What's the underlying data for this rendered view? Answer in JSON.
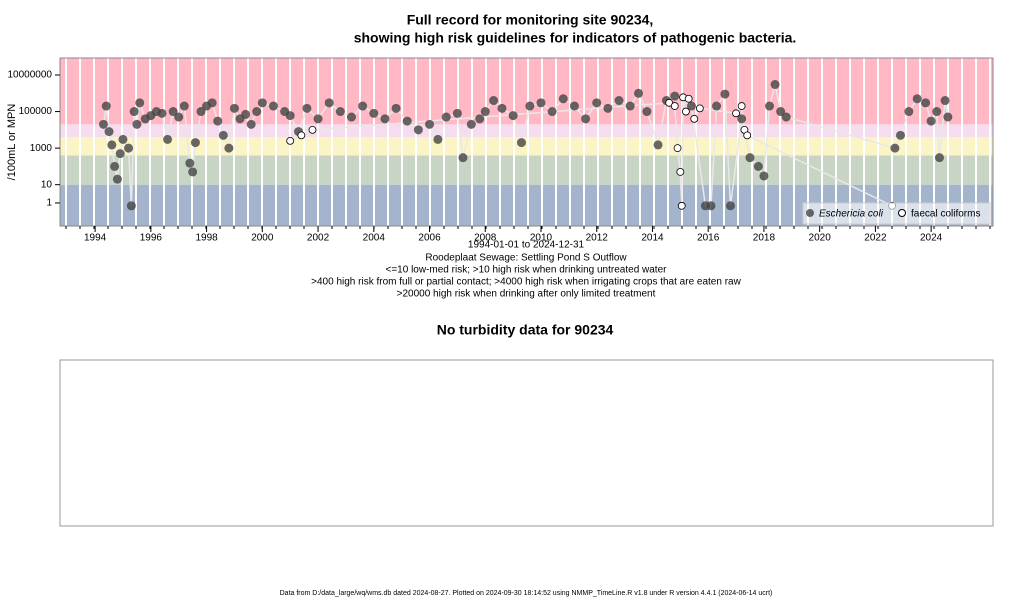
{
  "chart_data": {
    "type": "scatter",
    "title": "Full record for monitoring site 90234,",
    "subtitle": "showing high risk guidelines for indicators of pathogenic bacteria.",
    "y_label": "/100mL or MPN",
    "notes": [
      "1994-01-01 to 2024-12-31",
      "Roodeplaat Sewage: Settling Pond S Outflow",
      "<=10 low-med risk; >10 high risk when drinking untreated water",
      ">400 high risk from full or partial contact; >4000 high risk when irrigating crops that are eaten raw",
      ">20000 high risk when drinking after only limited treatment"
    ],
    "log_y": true,
    "xlim": [
      1992.74,
      2026.22
    ],
    "ylim": [
      0.055,
      85000000
    ],
    "xticks": [
      1994,
      1996,
      1998,
      2000,
      2002,
      2004,
      2006,
      2008,
      2010,
      2012,
      2014,
      2016,
      2018,
      2020,
      2022,
      2024
    ],
    "yticks": [
      1,
      10,
      1000,
      100000,
      10000000
    ],
    "band_thresholds": [
      10,
      400,
      4000,
      20000
    ],
    "band_colors": [
      "#a4b4cc",
      "#c9d5c4",
      "#fbf4c4",
      "#f5dcef",
      "#ffb8c4"
    ],
    "legend": "bottom-right",
    "series": [
      {
        "name": "Eschericia coli",
        "color": "#444444",
        "marker": "filled",
        "x": [
          1994.3,
          1994.4,
          1994.5,
          1994.6,
          1994.7,
          1994.8,
          1994.9,
          1995.0,
          1995.2,
          1995.3,
          1995.4,
          1995.5,
          1995.6,
          1995.8,
          1996.0,
          1996.2,
          1996.4,
          1996.6,
          1996.8,
          1997.0,
          1997.2,
          1997.4,
          1997.5,
          1997.6,
          1997.8,
          1998.0,
          1998.2,
          1998.4,
          1998.6,
          1998.8,
          1999.0,
          1999.2,
          1999.4,
          1999.6,
          1999.8,
          2000.0,
          2000.4,
          2000.8,
          2001.0,
          2001.3,
          2001.6,
          2002.0,
          2002.4,
          2002.8,
          2003.2,
          2003.6,
          2004.0,
          2004.4,
          2004.8,
          2005.2,
          2005.6,
          2006.0,
          2006.3,
          2006.6,
          2007.0,
          2007.2,
          2007.5,
          2007.8,
          2008.0,
          2008.3,
          2008.6,
          2009.0,
          2009.3,
          2009.6,
          2010.0,
          2010.4,
          2010.8,
          2011.2,
          2011.6,
          2012.0,
          2012.4,
          2012.8,
          2013.2,
          2013.5,
          2013.8,
          2014.2,
          2014.5,
          2014.8,
          2015.4,
          2015.9,
          2016.1,
          2016.3,
          2016.6,
          2016.8,
          2017.2,
          2017.5,
          2017.8,
          2018.0,
          2018.2,
          2018.4,
          2018.6,
          2018.8,
          2022.7,
          2022.9,
          2023.2,
          2023.5,
          2023.8,
          2024.0,
          2024.2,
          2024.3,
          2024.5,
          2024.6
        ],
        "values": [
          20000,
          200000,
          8000,
          1500,
          100,
          20,
          500,
          3000,
          1000,
          0.7,
          100000,
          20000,
          300000,
          40000,
          60000,
          100000,
          80000,
          3000,
          100000,
          50000,
          200000,
          150,
          50,
          2000,
          100000,
          200000,
          300000,
          30000,
          5000,
          1000,
          150000,
          40000,
          70000,
          20000,
          100000,
          300000,
          200000,
          100000,
          60000,
          8000,
          150000,
          40000,
          300000,
          100000,
          50000,
          200000,
          80000,
          40000,
          150000,
          30000,
          10000,
          20000,
          3000,
          50000,
          80000,
          300,
          20000,
          40000,
          100000,
          400000,
          150000,
          60000,
          2000,
          200000,
          300000,
          100000,
          500000,
          200000,
          40000,
          300000,
          150000,
          400000,
          200000,
          1000000,
          100000,
          1500,
          400000,
          700000,
          200000,
          0.7,
          0.7,
          200000,
          900000,
          0.7,
          40000,
          300,
          100,
          30,
          200000,
          3000000,
          100000,
          50000,
          1000,
          5000,
          100000,
          500000,
          300000,
          30000,
          100000,
          300,
          400000,
          50000
        ]
      },
      {
        "name": "faecal coliforms",
        "color": "#000000",
        "marker": "open",
        "x": [
          2001.0,
          2001.4,
          2001.8,
          2014.6,
          2014.8,
          2014.9,
          2015.0,
          2015.05,
          2015.1,
          2015.2,
          2015.3,
          2015.5,
          2015.7,
          2017.0,
          2017.2,
          2017.3,
          2017.4,
          2022.6
        ],
        "values": [
          2500,
          5000,
          10000,
          300000,
          200000,
          1000,
          50,
          0.7,
          600000,
          100000,
          500000,
          40000,
          150000,
          80000,
          200000,
          10000,
          5000,
          0.7
        ]
      }
    ]
  },
  "turbidity": {
    "title": "No turbidity data for 90234"
  },
  "footer": "Data from D:/data_large/wq/wms.db dated 2024-08-27. Plotted on 2024-09-30 18:14:52 using NMMP_TimeLine.R v1.8 under R version 4.4.1 (2024-06-14 ucrt)"
}
